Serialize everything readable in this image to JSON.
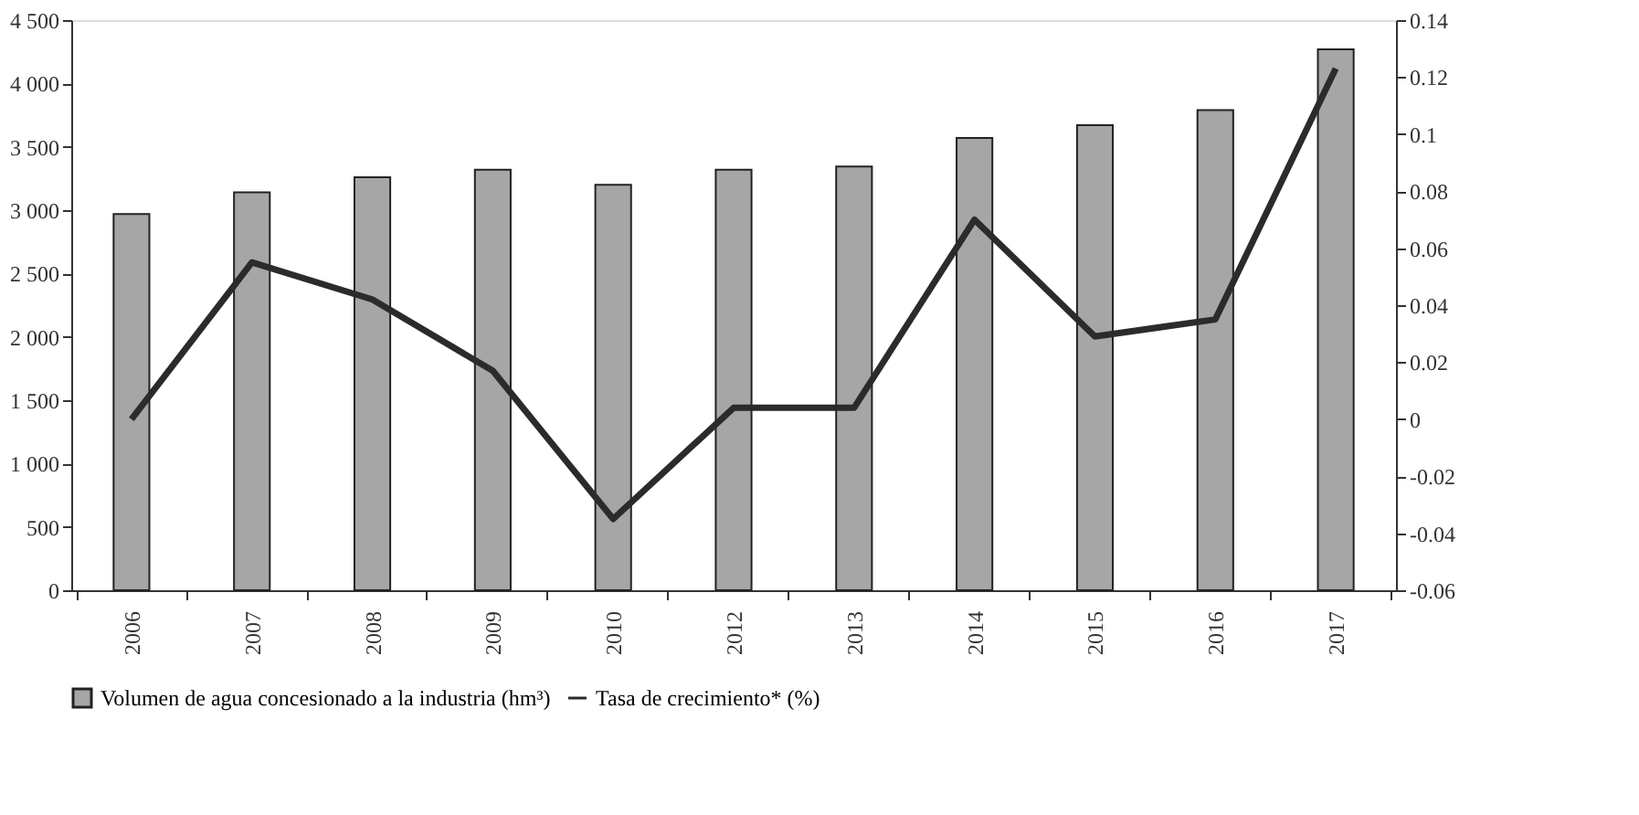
{
  "chart_data": {
    "type": "bar",
    "categories": [
      "2006",
      "2007",
      "2008",
      "2009",
      "2010",
      "2012",
      "2013",
      "2014",
      "2015",
      "2016",
      "2017"
    ],
    "series": [
      {
        "name": "Volumen de agua concesionado a la industria (hm³)",
        "color": "#a6a6a6",
        "values": [
          2970,
          3140,
          3260,
          3320,
          3200,
          3320,
          3345,
          3570,
          3670,
          3790,
          4270
        ]
      },
      {
        "name": "Tasa de crecimiento* (%)",
        "type": "line",
        "axis": "y2",
        "color": "#2b2b2b",
        "values": [
          0.0,
          0.055,
          0.042,
          0.017,
          -0.035,
          0.004,
          0.004,
          0.07,
          0.029,
          0.035,
          0.123
        ]
      }
    ],
    "ylim": [
      0,
      4500
    ],
    "yticks": [
      0,
      {
        "value": 500,
        "label": "500"
      },
      {
        "value": 1000,
        "label": "1 000"
      },
      {
        "value": 1500,
        "label": "1 500"
      },
      {
        "value": 2000,
        "label": "2 000"
      },
      {
        "value": 2500,
        "label": "2 500"
      },
      {
        "value": 3000,
        "label": "3 000"
      },
      {
        "value": 3500,
        "label": "3 500"
      },
      {
        "value": 4000,
        "label": "4 000"
      },
      {
        "value": 4500,
        "label": "4 500"
      }
    ],
    "y2lim": [
      -0.06,
      0.14
    ],
    "y2ticks": [
      -0.06,
      -0.04,
      -0.02,
      0,
      0.02,
      0.04,
      0.06,
      0.08,
      0.1,
      0.12,
      0.14
    ],
    "legend": "bottom",
    "grid": false
  }
}
